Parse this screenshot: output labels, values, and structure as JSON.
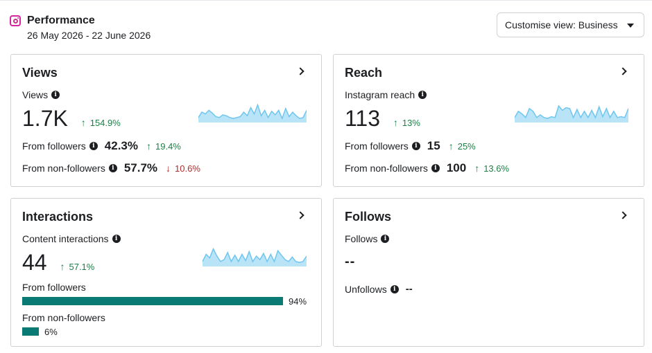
{
  "header": {
    "title": "Performance",
    "date_range": "26 May 2026 - 22 June 2026",
    "customise_label": "Customise view: Business"
  },
  "colors": {
    "positive": "#1b7f45",
    "negative": "#b22a2a",
    "bar": "#0a7a75",
    "sparkline_fill": "#b9e3f7",
    "sparkline_line": "#6ec6ee"
  },
  "views": {
    "title": "Views",
    "metric_label": "Views",
    "metric_value": "1.7K",
    "metric_delta": "154.9%",
    "from_followers_label": "From followers",
    "from_followers_value": "42.3%",
    "from_followers_delta": "19.4%",
    "from_non_followers_label": "From non-followers",
    "from_non_followers_value": "57.7%",
    "from_non_followers_delta": "10.6%"
  },
  "reach": {
    "title": "Reach",
    "metric_label": "Instagram reach",
    "metric_value": "113",
    "metric_delta": "13%",
    "from_followers_label": "From followers",
    "from_followers_value": "15",
    "from_followers_delta": "25%",
    "from_non_followers_label": "From non-followers",
    "from_non_followers_value": "100",
    "from_non_followers_delta": "13.6%"
  },
  "interactions": {
    "title": "Interactions",
    "metric_label": "Content interactions",
    "metric_value": "44",
    "metric_delta": "57.1%",
    "from_followers_label": "From followers",
    "from_followers_pct": "94%",
    "from_followers_fraction": 0.94,
    "from_non_followers_label": "From non-followers",
    "from_non_followers_pct": "6%",
    "from_non_followers_fraction": 0.06
  },
  "follows": {
    "title": "Follows",
    "metric_label": "Follows",
    "metric_value": "--",
    "unfollows_label": "Unfollows",
    "unfollows_value": "--"
  },
  "sparklines": {
    "views": [
      0.2,
      0.5,
      0.4,
      0.6,
      0.45,
      0.25,
      0.2,
      0.35,
      0.3,
      0.2,
      0.15,
      0.2,
      0.25,
      0.5,
      0.3,
      0.75,
      0.4,
      0.9,
      0.3,
      0.6,
      0.2,
      0.55,
      0.35,
      0.6,
      0.15,
      0.7,
      0.25,
      0.5,
      0.3,
      0.15,
      0.2,
      0.6
    ],
    "reach": [
      0.2,
      0.55,
      0.4,
      0.2,
      0.7,
      0.55,
      0.2,
      0.35,
      0.2,
      0.15,
      0.25,
      0.2,
      0.85,
      0.6,
      0.75,
      0.7,
      0.2,
      0.65,
      0.2,
      0.55,
      0.2,
      0.6,
      0.2,
      0.8,
      0.25,
      0.7,
      0.2,
      0.55,
      0.2,
      0.25,
      0.2,
      0.7
    ],
    "interactions": [
      0.2,
      0.6,
      0.4,
      0.9,
      0.5,
      0.2,
      0.3,
      0.7,
      0.2,
      0.55,
      0.2,
      0.6,
      0.25,
      0.75,
      0.2,
      0.5,
      0.3,
      0.65,
      0.2,
      0.6,
      0.2,
      0.8,
      0.55,
      0.3,
      0.2,
      0.45,
      0.2,
      0.15,
      0.2,
      0.5
    ]
  }
}
